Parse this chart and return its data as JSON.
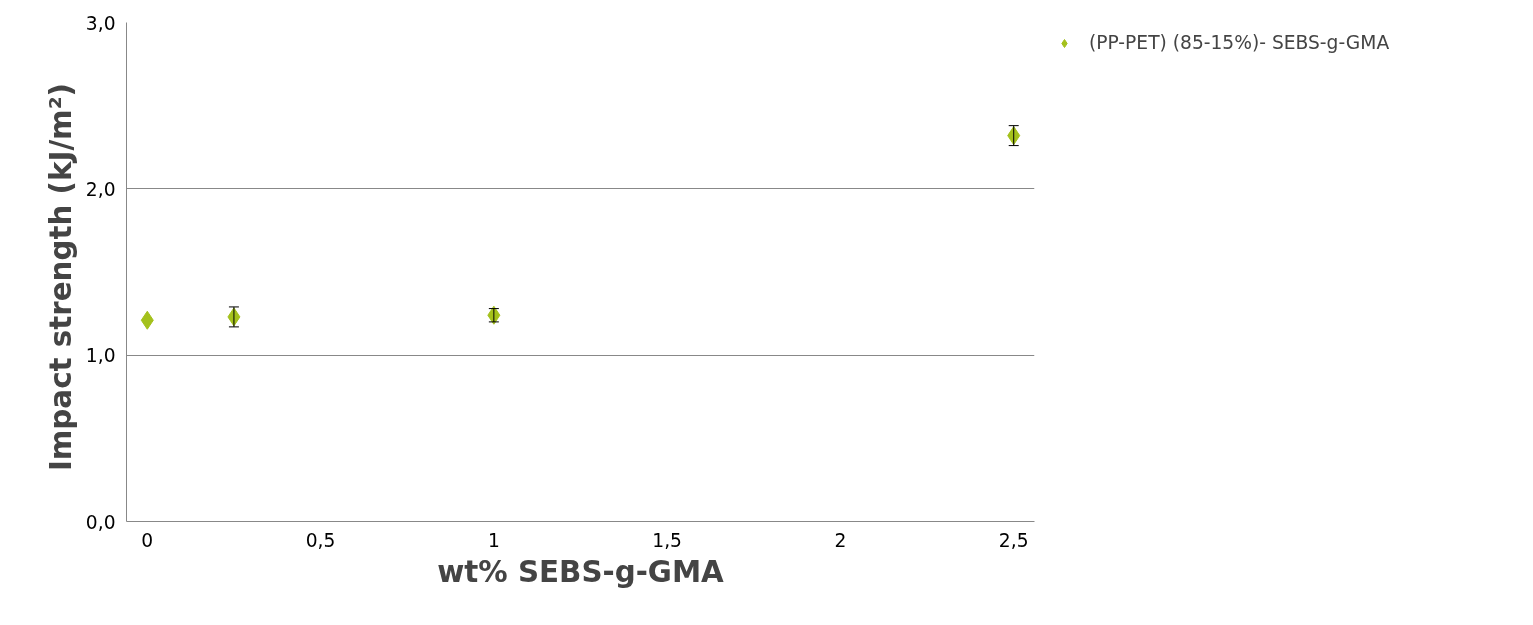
{
  "chart_data": {
    "type": "scatter",
    "xlabel": "wt% SEBS-g-GMA",
    "ylabel": "Impact strength  (kJ/m²)",
    "x": [
      0,
      0.25,
      1,
      2.5
    ],
    "series": [
      {
        "name": "(PP-PET) (85-15%)- SEBS-g-GMA",
        "color": "#a4c11c",
        "values": [
          1.21,
          1.23,
          1.24,
          2.32
        ],
        "errors": [
          null,
          0.06,
          0.04,
          0.06
        ]
      }
    ],
    "xlim": [
      -0.06,
      2.56
    ],
    "ylim": [
      0,
      3
    ],
    "xticks": [
      0,
      {
        "value": 0.5,
        "label": "0,5"
      },
      1,
      {
        "value": 1.5,
        "label": "1,5"
      },
      2,
      {
        "value": 2.5,
        "label": "2,5"
      }
    ],
    "yticks": [
      {
        "value": 0,
        "label": "0,0"
      },
      {
        "value": 1,
        "label": "1,0"
      },
      {
        "value": 2,
        "label": "2,0"
      },
      {
        "value": 3,
        "label": "3,0"
      }
    ],
    "grid": "y",
    "legend": "right",
    "marker": "diamond"
  }
}
